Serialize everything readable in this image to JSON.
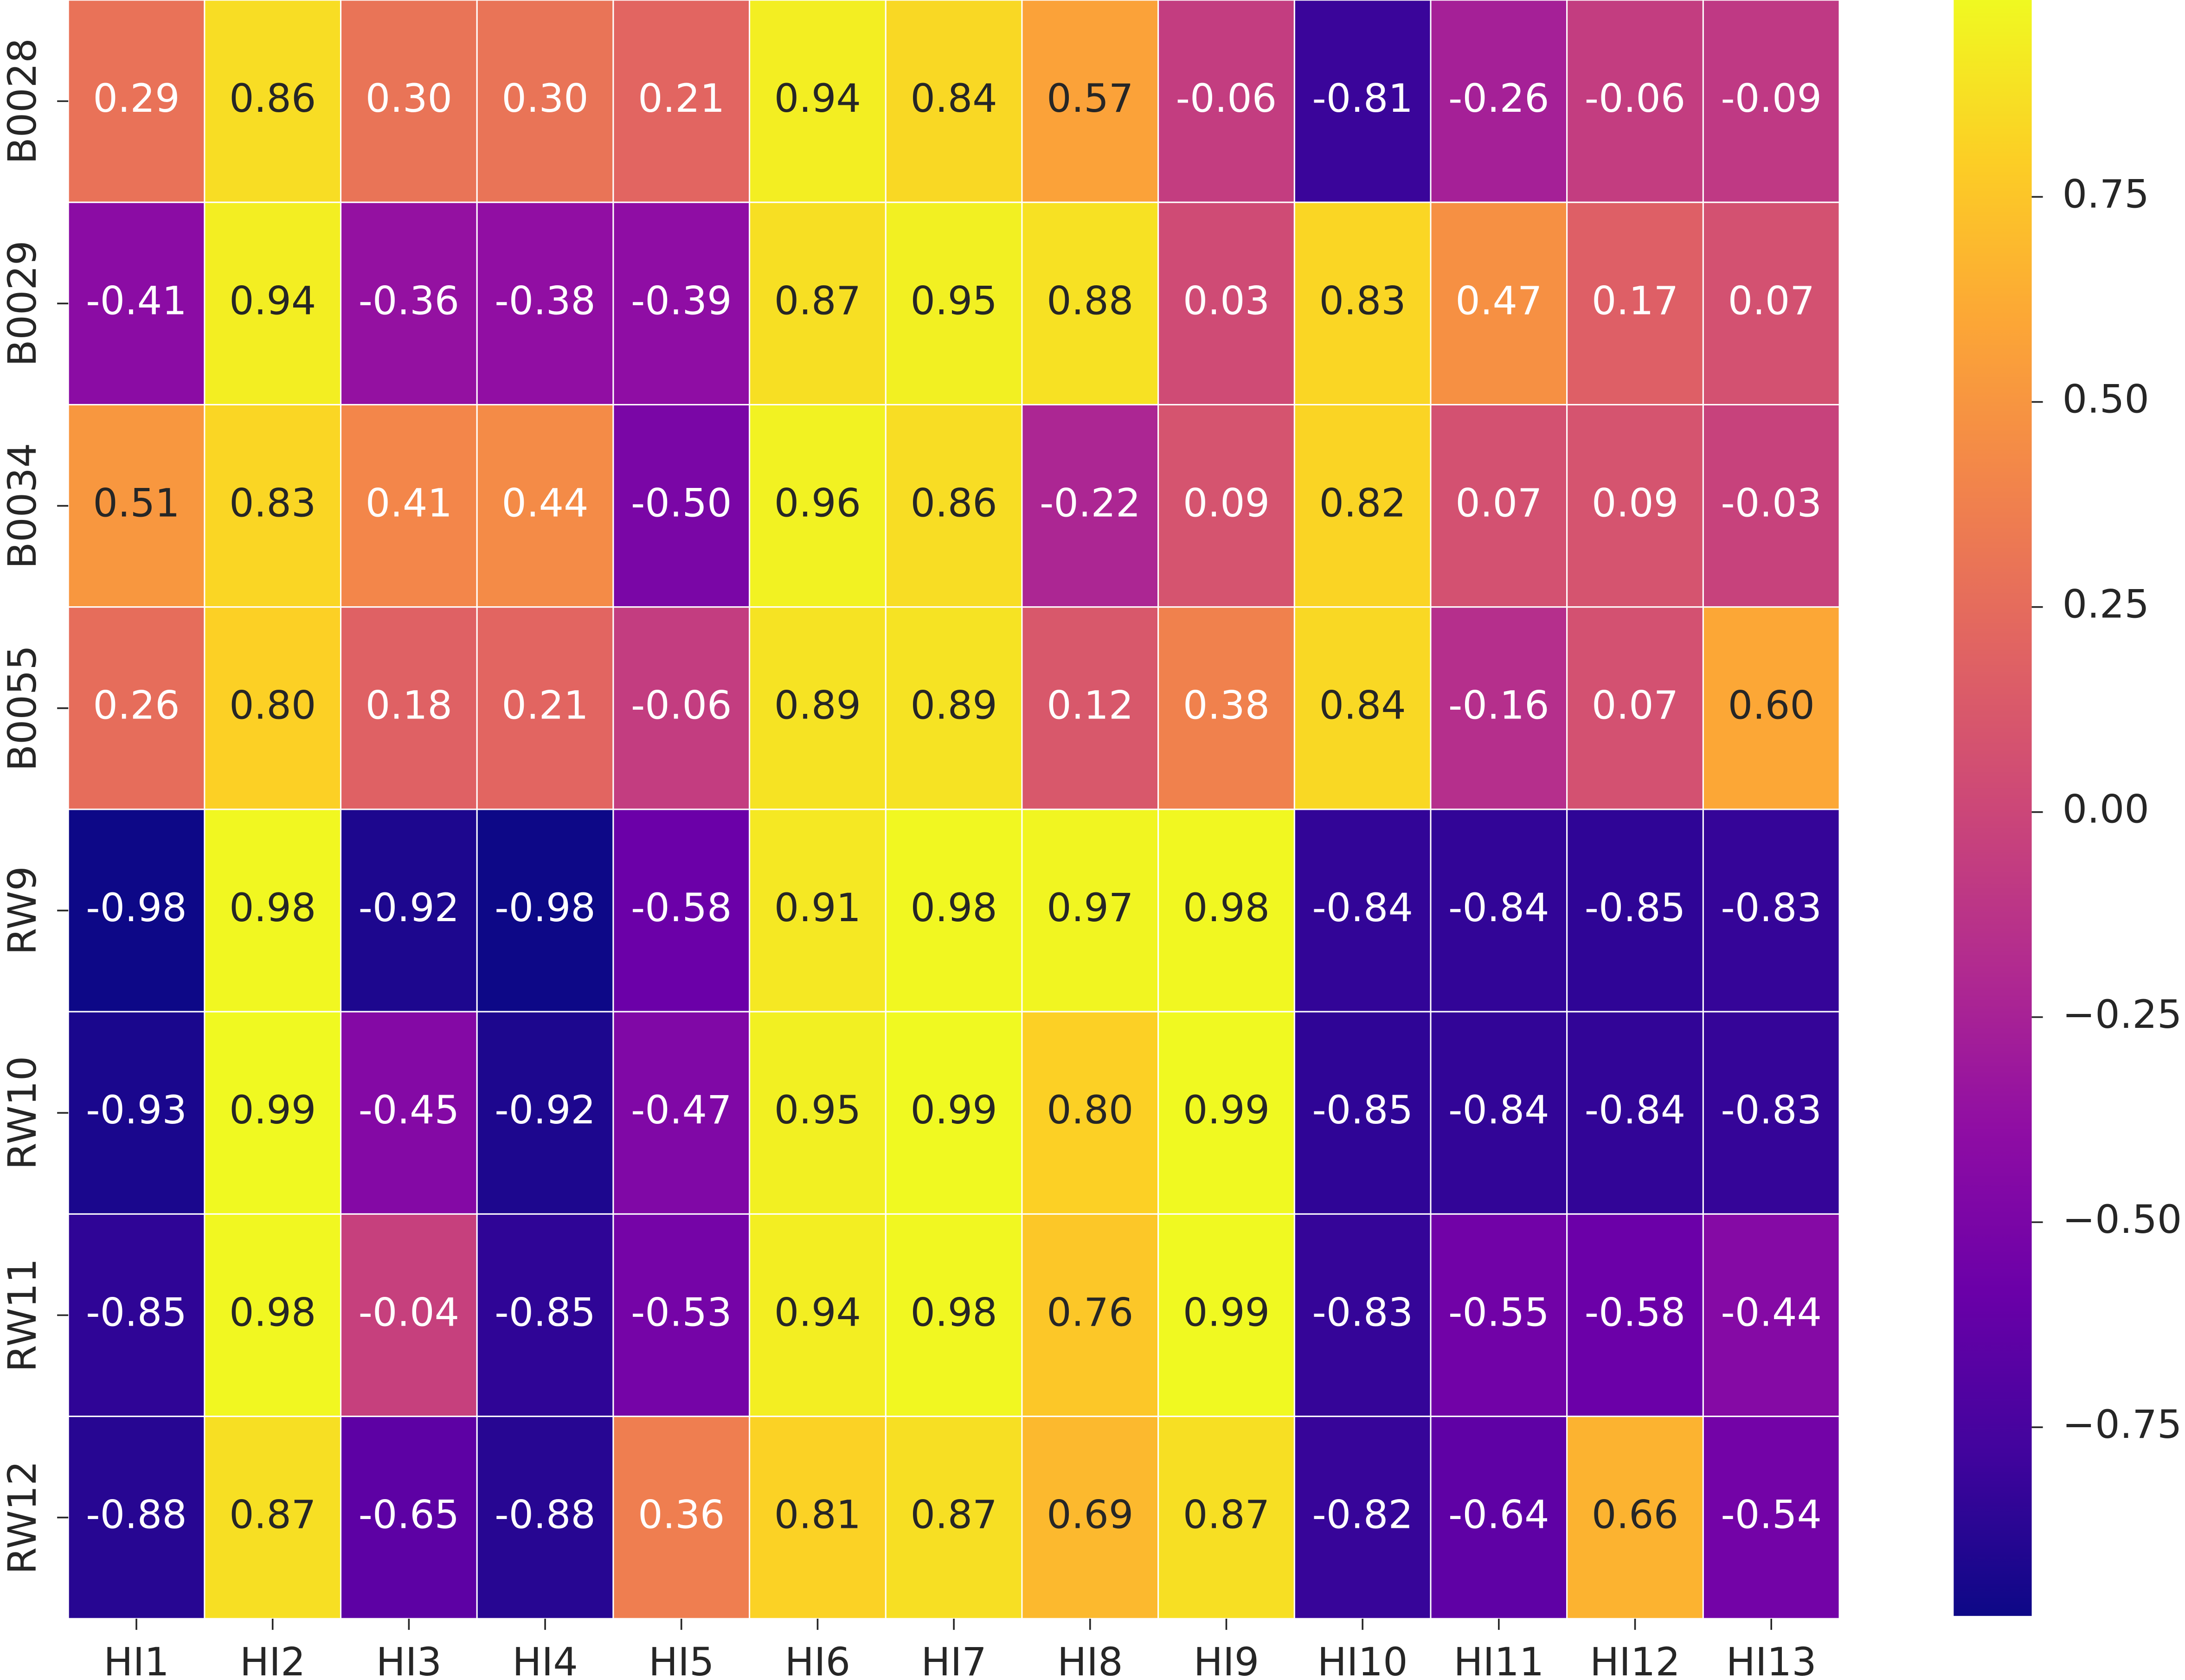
{
  "chart_data": {
    "type": "heatmap",
    "colormap": "plasma",
    "x": [
      "HI1",
      "HI2",
      "HI3",
      "HI4",
      "HI5",
      "HI6",
      "HI7",
      "HI8",
      "HI9",
      "HI10",
      "HI11",
      "HI12",
      "HI13"
    ],
    "y": [
      "B0028",
      "B0029",
      "B0034",
      "B0055",
      "RW9",
      "RW10",
      "RW11",
      "RW12"
    ],
    "values": [
      [
        0.29,
        0.86,
        0.3,
        0.3,
        0.21,
        0.94,
        0.84,
        0.57,
        -0.06,
        -0.81,
        -0.26,
        -0.06,
        -0.09
      ],
      [
        -0.41,
        0.94,
        -0.36,
        -0.38,
        -0.39,
        0.87,
        0.95,
        0.88,
        0.03,
        0.83,
        0.47,
        0.17,
        0.07
      ],
      [
        0.51,
        0.83,
        0.41,
        0.44,
        -0.5,
        0.96,
        0.86,
        -0.22,
        0.09,
        0.82,
        0.07,
        0.09,
        -0.03
      ],
      [
        0.26,
        0.8,
        0.18,
        0.21,
        -0.06,
        0.89,
        0.89,
        0.12,
        0.38,
        0.84,
        -0.16,
        0.07,
        0.6
      ],
      [
        -0.98,
        0.98,
        -0.92,
        -0.98,
        -0.58,
        0.91,
        0.98,
        0.97,
        0.98,
        -0.84,
        -0.84,
        -0.85,
        -0.83
      ],
      [
        -0.93,
        0.99,
        -0.45,
        -0.92,
        -0.47,
        0.95,
        0.99,
        0.8,
        0.99,
        -0.85,
        -0.84,
        -0.84,
        -0.83
      ],
      [
        -0.85,
        0.98,
        -0.04,
        -0.85,
        -0.53,
        0.94,
        0.98,
        0.76,
        0.99,
        -0.83,
        -0.55,
        -0.58,
        -0.44
      ],
      [
        -0.88,
        0.87,
        -0.65,
        -0.88,
        0.36,
        0.81,
        0.87,
        0.69,
        0.87,
        -0.82,
        -0.64,
        0.66,
        -0.54
      ]
    ],
    "value_labels": [
      [
        "0.29",
        "0.86",
        "0.30",
        "0.30",
        "0.21",
        "0.94",
        "0.84",
        "0.57",
        "-0.06",
        "-0.81",
        "-0.26",
        "-0.06",
        "-0.09"
      ],
      [
        "-0.41",
        "0.94",
        "-0.36",
        "-0.38",
        "-0.39",
        "0.87",
        "0.95",
        "0.88",
        "0.03",
        "0.83",
        "0.47",
        "0.17",
        "0.07"
      ],
      [
        "0.51",
        "0.83",
        "0.41",
        "0.44",
        "-0.50",
        "0.96",
        "0.86",
        "-0.22",
        "0.09",
        "0.82",
        "0.07",
        "0.09",
        "-0.03"
      ],
      [
        "0.26",
        "0.80",
        "0.18",
        "0.21",
        "-0.06",
        "0.89",
        "0.89",
        "0.12",
        "0.38",
        "0.84",
        "-0.16",
        "0.07",
        "0.60"
      ],
      [
        "-0.98",
        "0.98",
        "-0.92",
        "-0.98",
        "-0.58",
        "0.91",
        "0.98",
        "0.97",
        "0.98",
        "-0.84",
        "-0.84",
        "-0.85",
        "-0.83"
      ],
      [
        "-0.93",
        "0.99",
        "-0.45",
        "-0.92",
        "-0.47",
        "0.95",
        "0.99",
        "0.80",
        "0.99",
        "-0.85",
        "-0.84",
        "-0.84",
        "-0.83"
      ],
      [
        "-0.85",
        "0.98",
        "-0.04",
        "-0.85",
        "-0.53",
        "0.94",
        "0.98",
        "0.76",
        "0.99",
        "-0.83",
        "-0.55",
        "-0.58",
        "-0.44"
      ],
      [
        "-0.88",
        "0.87",
        "-0.65",
        "-0.88",
        "0.36",
        "0.81",
        "0.87",
        "0.69",
        "0.87",
        "-0.82",
        "-0.64",
        "0.66",
        "-0.54"
      ]
    ],
    "zlim": [
      -0.98,
      0.99
    ],
    "zticks": [
      0.75,
      {
        "value": 0.5,
        "label": "0.50"
      },
      0.25,
      {
        "value": 0,
        "label": "0.00"
      },
      {
        "value": -0.25,
        "label": "−0.25"
      },
      {
        "value": -0.5,
        "label": "−0.50"
      },
      {
        "value": -0.75,
        "label": "−0.75"
      }
    ]
  }
}
